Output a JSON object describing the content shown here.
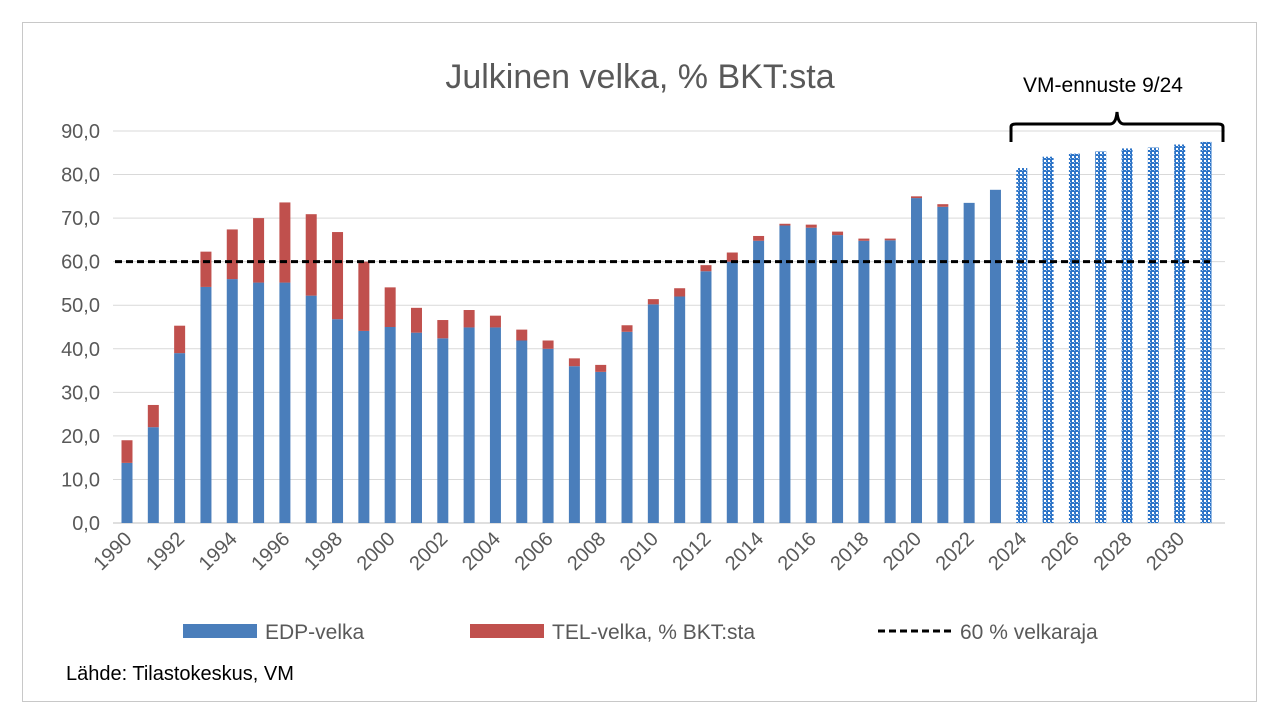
{
  "chart_data": {
    "type": "bar",
    "stacked": true,
    "title": "Julkinen velka, % BKT:sta",
    "xlabel": "",
    "ylabel": "",
    "ylim": [
      0,
      90
    ],
    "yticks": [
      "0,0",
      "10,0",
      "20,0",
      "30,0",
      "40,0",
      "50,0",
      "60,0",
      "70,0",
      "80,0",
      "90,0"
    ],
    "grid": true,
    "x": [
      1990,
      1991,
      1992,
      1993,
      1994,
      1995,
      1996,
      1997,
      1998,
      1999,
      2000,
      2001,
      2002,
      2003,
      2004,
      2005,
      2006,
      2007,
      2008,
      2009,
      2010,
      2011,
      2012,
      2013,
      2014,
      2015,
      2016,
      2017,
      2018,
      2019,
      2020,
      2021,
      2022,
      2023,
      2024,
      2025,
      2026,
      2027,
      2028,
      2029,
      2030,
      2031
    ],
    "xtick_labels": [
      "1990",
      "1992",
      "1994",
      "1996",
      "1998",
      "2000",
      "2002",
      "2004",
      "2006",
      "2008",
      "2010",
      "2012",
      "2014",
      "2016",
      "2018",
      "2020",
      "2022",
      "2024",
      "2026",
      "2028",
      "2030"
    ],
    "series": [
      {
        "name": "EDP-velka",
        "color": "#4a7ebb",
        "values": [
          13.8,
          22.0,
          39.0,
          54.2,
          56.0,
          55.2,
          55.2,
          52.2,
          46.8,
          44.1,
          45.0,
          43.7,
          42.4,
          44.9,
          44.9,
          41.9,
          40.0,
          36.0,
          34.7,
          43.9,
          50.2,
          52.0,
          57.8,
          60.0,
          64.8,
          68.3,
          67.8,
          66.1,
          64.8,
          64.9,
          74.6,
          72.6,
          73.5,
          76.5,
          81.5,
          84.1,
          84.8,
          85.3,
          86.0,
          86.2,
          86.9,
          87.5
        ]
      },
      {
        "name": "TEL-velka, % BKT:sta",
        "color": "#c0504d",
        "values": [
          5.2,
          5.1,
          6.3,
          8.1,
          11.4,
          14.8,
          18.4,
          18.7,
          20.0,
          15.9,
          9.1,
          5.7,
          4.2,
          4.0,
          2.7,
          2.5,
          1.9,
          1.8,
          1.6,
          1.5,
          1.2,
          1.9,
          1.4,
          2.1,
          1.1,
          0.4,
          0.7,
          0.8,
          0.5,
          0.4,
          0.4,
          0.6,
          0,
          0,
          0,
          0,
          0,
          0,
          0,
          0,
          0,
          0
        ]
      }
    ],
    "reference_line": {
      "name": "60 % velkaraja",
      "value": 60,
      "style": "dashed",
      "color": "#000000"
    },
    "forecast": {
      "label": "VM-ennuste 9/24",
      "from": 2024,
      "to": 2031
    },
    "legend_position": "bottom",
    "source": "Lähde: Tilastokeskus, VM"
  }
}
